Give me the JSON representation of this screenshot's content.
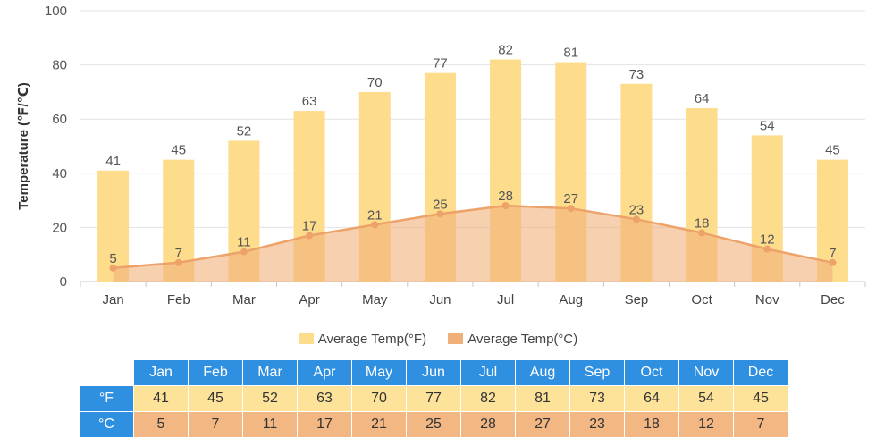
{
  "chart_data": {
    "type": "bar",
    "categories": [
      "Jan",
      "Feb",
      "Mar",
      "Apr",
      "May",
      "Jun",
      "Jul",
      "Aug",
      "Sep",
      "Oct",
      "Nov",
      "Dec"
    ],
    "series": [
      {
        "name": "Average Temp(°F)",
        "type": "bar",
        "color": "#fddc8c",
        "values": [
          41,
          45,
          52,
          63,
          70,
          77,
          82,
          81,
          73,
          64,
          54,
          45
        ]
      },
      {
        "name": "Average Temp(°C)",
        "type": "area",
        "color": "#f0b07a",
        "values": [
          5,
          7,
          11,
          17,
          21,
          25,
          28,
          27,
          23,
          18,
          12,
          7
        ]
      }
    ],
    "ylabel": "Temperature (℉/℃)",
    "ylim": [
      0,
      100
    ],
    "yticks": [
      0,
      20,
      40,
      60,
      80,
      100
    ],
    "grid": true,
    "legend_position": "bottom"
  },
  "table": {
    "months": [
      "Jan",
      "Feb",
      "Mar",
      "Apr",
      "May",
      "Jun",
      "Jul",
      "Aug",
      "Sep",
      "Oct",
      "Nov",
      "Dec"
    ],
    "f_label": "°F",
    "c_label": "°C",
    "f_values": [
      41,
      45,
      52,
      63,
      70,
      77,
      82,
      81,
      73,
      64,
      54,
      45
    ],
    "c_values": [
      5,
      7,
      11,
      17,
      21,
      25,
      28,
      27,
      23,
      18,
      12,
      7
    ]
  }
}
